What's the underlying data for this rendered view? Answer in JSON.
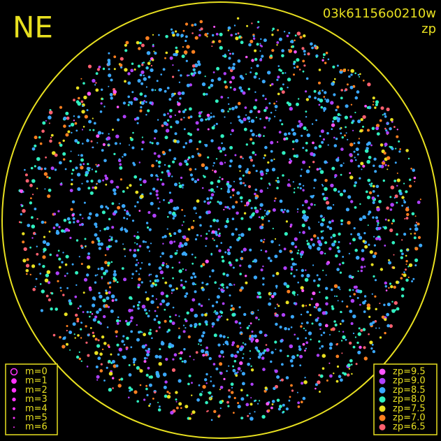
{
  "label": "NE",
  "image_id": "03k61156o0210w",
  "subtitle": "zp",
  "magnitude_legend": [
    "m=0",
    "m=1",
    "m=2",
    "m=3",
    "m=4",
    "m=5",
    "m=6"
  ],
  "zp_legend": [
    {
      "label": "zp=9.5",
      "color": "#ff55ff"
    },
    {
      "label": "zp=9.0",
      "color": "#b040ff"
    },
    {
      "label": "zp=8.5",
      "color": "#3aa8ff"
    },
    {
      "label": "zp=8.0",
      "color": "#30f0c0"
    },
    {
      "label": "zp=7.5",
      "color": "#e8e020"
    },
    {
      "label": "zp=7.0",
      "color": "#ff8020"
    },
    {
      "label": "zp=6.5",
      "color": "#ff6070"
    }
  ]
}
